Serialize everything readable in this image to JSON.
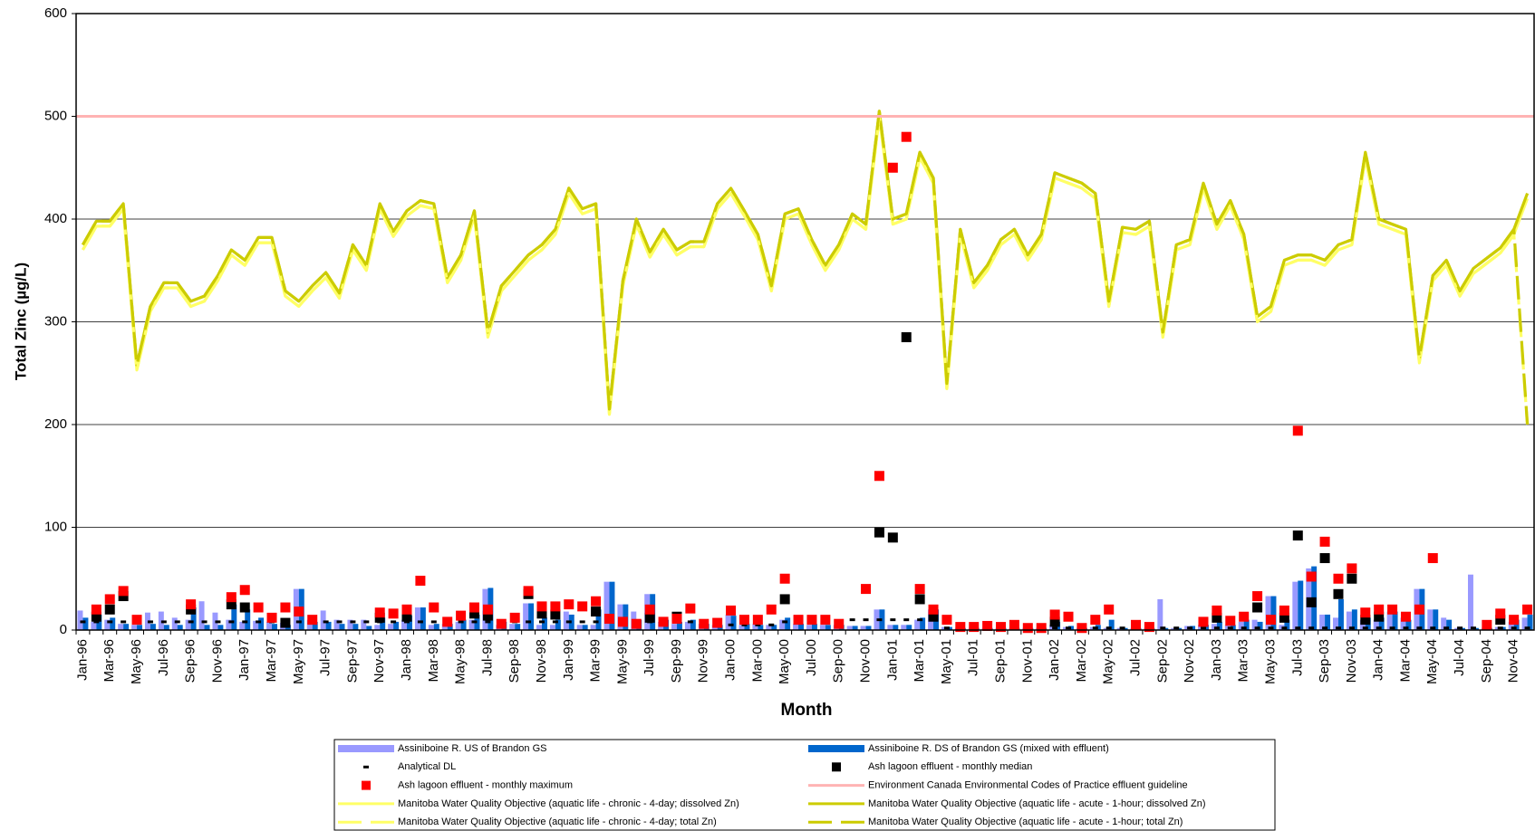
{
  "chart_data": {
    "type": "combo",
    "x_label": "Month",
    "y_label": "Total Zinc (µg/L)",
    "ylim": [
      0,
      600
    ],
    "yticks": [
      0,
      100,
      200,
      300,
      400,
      500,
      600
    ],
    "grid": true,
    "categories": [
      "Jan-96",
      null,
      "Mar-96",
      null,
      "May-96",
      null,
      "Jul-96",
      null,
      "Sep-96",
      null,
      "Nov-96",
      null,
      "Jan-97",
      null,
      "Mar-97",
      null,
      "May-97",
      null,
      "Jul-97",
      null,
      "Sep-97",
      null,
      "Nov-97",
      null,
      "Jan-98",
      null,
      "Mar-98",
      null,
      "May-98",
      null,
      "Jul-98",
      null,
      "Sep-98",
      null,
      "Nov-98",
      null,
      "Jan-99",
      null,
      "Mar-99",
      null,
      "May-99",
      null,
      "Jul-99",
      null,
      "Sep-99",
      null,
      "Nov-99",
      null,
      "Jan-00",
      null,
      "Mar-00",
      null,
      "May-00",
      null,
      "Jul-00",
      null,
      "Sep-00",
      null,
      "Nov-00",
      null,
      "Jan-01",
      null,
      "Mar-01",
      null,
      "May-01",
      null,
      "Jul-01",
      null,
      "Sep-01",
      null,
      "Nov-01",
      null,
      "Jan-02",
      null,
      "Mar-02",
      null,
      "May-02",
      null,
      "Jul-02",
      null,
      "Sep-02",
      null,
      "Nov-02",
      null,
      "Jan-03",
      null,
      "Mar-03",
      null,
      "May-03",
      null,
      "Jul-03",
      null,
      "Sep-03",
      null,
      "Nov-03",
      null,
      "Jan-04",
      null,
      "Mar-04",
      null,
      "May-04",
      null,
      "Jul-04",
      null,
      "Sep-04",
      null,
      "Nov-04",
      null
    ],
    "series": [
      {
        "name": "Assiniboine R. US of Brandon GS",
        "style": "bar",
        "color": "#9999ff",
        "values": [
          19,
          8,
          10,
          6,
          5,
          17,
          18,
          12,
          10,
          28,
          17,
          10,
          8,
          9,
          8,
          7,
          40,
          10,
          19,
          10,
          10,
          10,
          5,
          6,
          10,
          22,
          5,
          6,
          8,
          10,
          40,
          5,
          6,
          26,
          5,
          5,
          18,
          5,
          5,
          47,
          25,
          18,
          35,
          8,
          6,
          8,
          6,
          5,
          15,
          5,
          6,
          5,
          10,
          6,
          5,
          5,
          5,
          4,
          4,
          20,
          5,
          5,
          10,
          20,
          3,
          2,
          2,
          2,
          2,
          2,
          2,
          2,
          5,
          3,
          2,
          3,
          2,
          2,
          2,
          2,
          30,
          2,
          4,
          5,
          6,
          5,
          8,
          10,
          33,
          5,
          47,
          60,
          15,
          12,
          18,
          10,
          10,
          18,
          12,
          40,
          20,
          12,
          2,
          54,
          2,
          3,
          8,
          12
        ]
      },
      {
        "name": "Assiniboine R. DS of Brandon GS (mixed with effluent)",
        "style": "bar",
        "color": "#0066cc",
        "values": [
          12,
          15,
          12,
          6,
          5,
          6,
          5,
          5,
          22,
          5,
          5,
          25,
          20,
          12,
          6,
          5,
          40,
          8,
          8,
          6,
          6,
          4,
          12,
          8,
          14,
          22,
          6,
          6,
          10,
          15,
          41,
          8,
          6,
          26,
          12,
          10,
          15,
          5,
          20,
          47,
          25,
          10,
          35,
          10,
          8,
          10,
          6,
          5,
          14,
          6,
          5,
          5,
          12,
          6,
          6,
          5,
          5,
          4,
          4,
          20,
          5,
          5,
          12,
          20,
          3,
          2,
          2,
          2,
          2,
          2,
          2,
          2,
          8,
          4,
          2,
          5,
          10,
          2,
          2,
          2,
          2,
          2,
          4,
          5,
          8,
          5,
          10,
          8,
          33,
          10,
          48,
          62,
          15,
          30,
          20,
          12,
          12,
          18,
          10,
          40,
          20,
          10,
          2,
          2,
          2,
          3,
          10,
          15
        ]
      },
      {
        "name": "Analytical DL",
        "style": "dash",
        "color": "#000000",
        "values": [
          8,
          8,
          8,
          8,
          8,
          8,
          8,
          8,
          8,
          8,
          8,
          8,
          8,
          8,
          8,
          8,
          8,
          8,
          8,
          8,
          8,
          8,
          8,
          8,
          8,
          8,
          8,
          8,
          8,
          8,
          8,
          8,
          8,
          8,
          8,
          8,
          8,
          8,
          8,
          8,
          8,
          8,
          8,
          8,
          8,
          8,
          8,
          8,
          5,
          5,
          5,
          5,
          8,
          8,
          8,
          8,
          8,
          10,
          10,
          10,
          10,
          10,
          10,
          10,
          2,
          2,
          2,
          2,
          2,
          2,
          2,
          2,
          2,
          2,
          2,
          2,
          2,
          2,
          2,
          2,
          2,
          2,
          2,
          2,
          2,
          2,
          2,
          2,
          2,
          2,
          2,
          2,
          2,
          2,
          2,
          2,
          2,
          2,
          2,
          2,
          2,
          2,
          2,
          2,
          2,
          2,
          2,
          2
        ]
      },
      {
        "name": "Ash lagoon effluent - monthly median",
        "style": "square",
        "color": "#000000",
        "values": [
          null,
          13,
          20,
          33,
          null,
          null,
          null,
          null,
          20,
          null,
          null,
          25,
          22,
          null,
          null,
          7,
          null,
          null,
          null,
          null,
          null,
          null,
          12,
          null,
          13,
          null,
          null,
          null,
          null,
          16,
          14,
          null,
          null,
          35,
          16,
          15,
          null,
          null,
          18,
          null,
          null,
          null,
          12,
          null,
          13,
          null,
          null,
          null,
          null,
          null,
          null,
          null,
          30,
          null,
          null,
          null,
          null,
          null,
          null,
          95,
          90,
          285,
          30,
          13,
          null,
          null,
          null,
          null,
          null,
          null,
          null,
          null,
          8,
          null,
          null,
          null,
          null,
          null,
          null,
          null,
          null,
          null,
          null,
          null,
          12,
          null,
          null,
          22,
          null,
          12,
          92,
          27,
          70,
          35,
          50,
          10,
          13,
          null,
          null,
          null,
          null,
          null,
          null,
          null,
          null,
          10,
          null,
          null
        ]
      },
      {
        "name": "Ash lagoon effluent - monthly maximum",
        "style": "square",
        "color": "#ff0000",
        "values": [
          null,
          20,
          30,
          38,
          10,
          null,
          null,
          null,
          25,
          null,
          null,
          32,
          39,
          22,
          12,
          22,
          18,
          10,
          null,
          null,
          null,
          null,
          17,
          16,
          20,
          48,
          22,
          8,
          14,
          22,
          20,
          6,
          12,
          38,
          23,
          23,
          25,
          23,
          28,
          11,
          8,
          6,
          20,
          8,
          11,
          21,
          6,
          7,
          19,
          10,
          10,
          20,
          50,
          10,
          10,
          10,
          6,
          null,
          40,
          150,
          450,
          480,
          40,
          20,
          10,
          3,
          3,
          4,
          3,
          5,
          2,
          2,
          15,
          13,
          2,
          10,
          20,
          null,
          5,
          3,
          null,
          null,
          null,
          8,
          19,
          9,
          13,
          33,
          10,
          19,
          194,
          52,
          86,
          50,
          60,
          17,
          20,
          20,
          13,
          20,
          70,
          null,
          null,
          null,
          5,
          16,
          10,
          20
        ]
      },
      {
        "name": "Environment Canada Environmental Codes of Practice effluent guideline",
        "style": "hline",
        "color": "#ffb3b3",
        "value": 500
      },
      {
        "name": "Manitoba Water Quality Objective (aquatic life - chronic - 4-day; dissolved Zn)",
        "style": "line",
        "color": "#ffff66",
        "values": [
          370,
          393,
          393,
          410,
          253,
          310,
          333,
          333,
          315,
          320,
          340,
          365,
          355,
          377,
          377,
          325,
          315,
          330,
          343,
          323,
          370,
          350,
          410,
          383,
          403,
          413,
          410,
          338,
          360,
          403,
          285,
          330,
          345,
          360,
          370,
          385,
          425,
          405,
          410,
          210,
          335,
          395,
          363,
          385,
          365,
          373,
          373,
          410,
          425,
          403,
          380,
          330,
          400,
          405,
          375,
          350,
          370,
          400,
          390,
          500,
          395,
          400,
          460,
          435,
          235,
          385,
          333,
          350,
          375,
          385,
          360,
          380,
          440,
          435,
          430,
          420,
          315,
          387,
          385,
          393,
          285,
          370,
          375,
          430,
          390,
          413,
          380,
          300,
          310,
          355,
          360,
          360,
          355,
          370,
          375,
          460,
          395,
          390,
          385,
          260,
          340,
          355,
          325,
          347,
          357,
          367,
          385,
          420
        ]
      },
      {
        "name": "Manitoba Water Quality Objective (aquatic life - acute - 1-hour; dissolved Zn)",
        "style": "line",
        "color": "#cccc00",
        "values": [
          375,
          398,
          398,
          415,
          258,
          315,
          338,
          338,
          320,
          325,
          345,
          370,
          360,
          382,
          382,
          330,
          320,
          335,
          348,
          328,
          375,
          355,
          415,
          388,
          408,
          418,
          415,
          343,
          365,
          408,
          290,
          335,
          350,
          365,
          375,
          390,
          430,
          410,
          415,
          215,
          340,
          400,
          368,
          390,
          370,
          378,
          378,
          415,
          430,
          408,
          385,
          335,
          405,
          410,
          380,
          355,
          375,
          405,
          395,
          505,
          400,
          405,
          465,
          440,
          240,
          390,
          338,
          355,
          380,
          390,
          365,
          385,
          445,
          440,
          435,
          425,
          320,
          392,
          390,
          398,
          290,
          375,
          380,
          435,
          395,
          418,
          385,
          305,
          315,
          360,
          365,
          365,
          360,
          375,
          380,
          465,
          400,
          395,
          390,
          265,
          345,
          360,
          330,
          352,
          362,
          372,
          390,
          425
        ]
      },
      {
        "name": "Manitoba Water Quality Objective (aquatic life - chronic - 4-day; total Zn)",
        "style": "dashed",
        "color": "#ffff66",
        "values": [
          370,
          393,
          393,
          410,
          253,
          310,
          333,
          333,
          315,
          320,
          340,
          365,
          355,
          377,
          377,
          325,
          315,
          330,
          343,
          323,
          370,
          350,
          410,
          383,
          403,
          413,
          410,
          338,
          360,
          403,
          285,
          330,
          345,
          360,
          370,
          385,
          425,
          405,
          410,
          210,
          335,
          395,
          363,
          385,
          365,
          373,
          373,
          410,
          425,
          403,
          380,
          330,
          400,
          405,
          375,
          350,
          370,
          400,
          390,
          500,
          395,
          400,
          460,
          435,
          235,
          385,
          333,
          350,
          375,
          385,
          360,
          380,
          440,
          435,
          430,
          420,
          315,
          387,
          385,
          393,
          285,
          370,
          375,
          430,
          390,
          413,
          380,
          300,
          310,
          355,
          360,
          360,
          355,
          370,
          375,
          460,
          395,
          390,
          385,
          260,
          340,
          355,
          325,
          347,
          357,
          367,
          385,
          200
        ]
      },
      {
        "name": "Manitoba Water Quality Objective (aquatic life - acute - 1-hour; total Zn)",
        "style": "dashed",
        "color": "#cccc00",
        "values": [
          375,
          398,
          398,
          415,
          258,
          315,
          338,
          338,
          320,
          325,
          345,
          370,
          360,
          382,
          382,
          330,
          320,
          335,
          348,
          328,
          375,
          355,
          415,
          388,
          408,
          418,
          415,
          343,
          365,
          408,
          290,
          335,
          350,
          365,
          375,
          390,
          430,
          410,
          415,
          215,
          340,
          400,
          368,
          390,
          370,
          378,
          378,
          415,
          430,
          408,
          385,
          335,
          405,
          410,
          380,
          355,
          375,
          405,
          395,
          505,
          400,
          405,
          465,
          440,
          240,
          390,
          338,
          355,
          380,
          390,
          365,
          385,
          445,
          440,
          435,
          425,
          320,
          392,
          390,
          398,
          290,
          375,
          380,
          435,
          395,
          418,
          385,
          305,
          315,
          360,
          365,
          365,
          360,
          375,
          380,
          465,
          400,
          395,
          390,
          265,
          345,
          360,
          330,
          352,
          362,
          372,
          390,
          200
        ]
      }
    ]
  }
}
